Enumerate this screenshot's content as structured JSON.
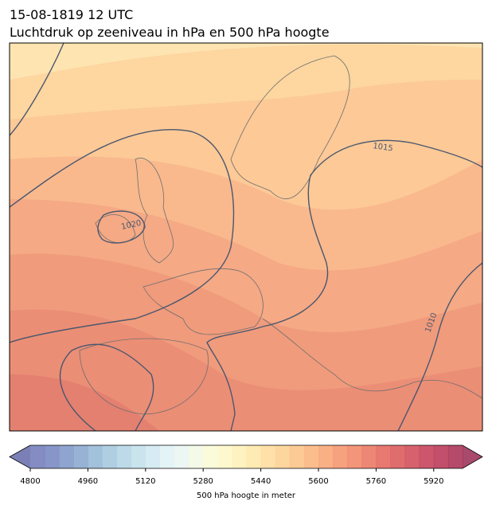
{
  "header": {
    "title_line1": "15-08-1819 12 UTC",
    "title_line2": "Luchtdruk op zeeniveau in hPa en 500 hPa hoogte"
  },
  "map": {
    "isobar_labels": [
      "1015",
      "1010",
      "1020"
    ]
  },
  "colorbar": {
    "label": "500 hPa hoogte in meter",
    "lim": [
      4800,
      6000
    ],
    "ticks": [
      4800,
      4960,
      5120,
      5280,
      5440,
      5600,
      5760,
      5920
    ],
    "colors": [
      "#6e78b8",
      "#7383be",
      "#7b94c6",
      "#85a5cc",
      "#92b6d4",
      "#a2c6dc",
      "#b0d3e4",
      "#c0dfea",
      "#d0e8f0",
      "#dff1f4",
      "#e9f5f0",
      "#f2f8e4",
      "#f9fad4",
      "#fdf7c4",
      "#fef0b5",
      "#fee6a6",
      "#fedb99",
      "#fdcf8d",
      "#fcc182",
      "#fbb279",
      "#f8a270",
      "#f59269",
      "#f08263",
      "#ea725d",
      "#e36258",
      "#da5455",
      "#cf4653",
      "#c33a52",
      "#b73051",
      "#a82a50"
    ],
    "under_color": "#636aa8",
    "over_color": "#9a2a52"
  }
}
